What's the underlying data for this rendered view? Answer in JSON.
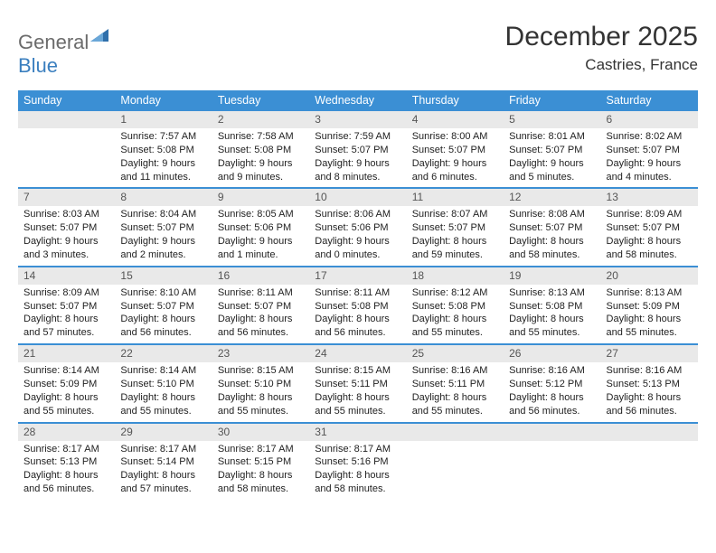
{
  "logo": {
    "textGray": "General",
    "textBlue": "Blue"
  },
  "title": "December 2025",
  "location": "Castries, France",
  "colors": {
    "headerBg": "#3b8fd4",
    "headerText": "#ffffff",
    "dayNumBg": "#e9e9e9",
    "rowDivider": "#3b8fd4",
    "logoGray": "#6b6b6b",
    "logoBlue": "#3b7fbf"
  },
  "weekdays": [
    "Sunday",
    "Monday",
    "Tuesday",
    "Wednesday",
    "Thursday",
    "Friday",
    "Saturday"
  ],
  "weeks": [
    [
      {
        "n": "",
        "sr": "",
        "ss": "",
        "dl": ""
      },
      {
        "n": "1",
        "sr": "Sunrise: 7:57 AM",
        "ss": "Sunset: 5:08 PM",
        "dl": "Daylight: 9 hours and 11 minutes."
      },
      {
        "n": "2",
        "sr": "Sunrise: 7:58 AM",
        "ss": "Sunset: 5:08 PM",
        "dl": "Daylight: 9 hours and 9 minutes."
      },
      {
        "n": "3",
        "sr": "Sunrise: 7:59 AM",
        "ss": "Sunset: 5:07 PM",
        "dl": "Daylight: 9 hours and 8 minutes."
      },
      {
        "n": "4",
        "sr": "Sunrise: 8:00 AM",
        "ss": "Sunset: 5:07 PM",
        "dl": "Daylight: 9 hours and 6 minutes."
      },
      {
        "n": "5",
        "sr": "Sunrise: 8:01 AM",
        "ss": "Sunset: 5:07 PM",
        "dl": "Daylight: 9 hours and 5 minutes."
      },
      {
        "n": "6",
        "sr": "Sunrise: 8:02 AM",
        "ss": "Sunset: 5:07 PM",
        "dl": "Daylight: 9 hours and 4 minutes."
      }
    ],
    [
      {
        "n": "7",
        "sr": "Sunrise: 8:03 AM",
        "ss": "Sunset: 5:07 PM",
        "dl": "Daylight: 9 hours and 3 minutes."
      },
      {
        "n": "8",
        "sr": "Sunrise: 8:04 AM",
        "ss": "Sunset: 5:07 PM",
        "dl": "Daylight: 9 hours and 2 minutes."
      },
      {
        "n": "9",
        "sr": "Sunrise: 8:05 AM",
        "ss": "Sunset: 5:06 PM",
        "dl": "Daylight: 9 hours and 1 minute."
      },
      {
        "n": "10",
        "sr": "Sunrise: 8:06 AM",
        "ss": "Sunset: 5:06 PM",
        "dl": "Daylight: 9 hours and 0 minutes."
      },
      {
        "n": "11",
        "sr": "Sunrise: 8:07 AM",
        "ss": "Sunset: 5:07 PM",
        "dl": "Daylight: 8 hours and 59 minutes."
      },
      {
        "n": "12",
        "sr": "Sunrise: 8:08 AM",
        "ss": "Sunset: 5:07 PM",
        "dl": "Daylight: 8 hours and 58 minutes."
      },
      {
        "n": "13",
        "sr": "Sunrise: 8:09 AM",
        "ss": "Sunset: 5:07 PM",
        "dl": "Daylight: 8 hours and 58 minutes."
      }
    ],
    [
      {
        "n": "14",
        "sr": "Sunrise: 8:09 AM",
        "ss": "Sunset: 5:07 PM",
        "dl": "Daylight: 8 hours and 57 minutes."
      },
      {
        "n": "15",
        "sr": "Sunrise: 8:10 AM",
        "ss": "Sunset: 5:07 PM",
        "dl": "Daylight: 8 hours and 56 minutes."
      },
      {
        "n": "16",
        "sr": "Sunrise: 8:11 AM",
        "ss": "Sunset: 5:07 PM",
        "dl": "Daylight: 8 hours and 56 minutes."
      },
      {
        "n": "17",
        "sr": "Sunrise: 8:11 AM",
        "ss": "Sunset: 5:08 PM",
        "dl": "Daylight: 8 hours and 56 minutes."
      },
      {
        "n": "18",
        "sr": "Sunrise: 8:12 AM",
        "ss": "Sunset: 5:08 PM",
        "dl": "Daylight: 8 hours and 55 minutes."
      },
      {
        "n": "19",
        "sr": "Sunrise: 8:13 AM",
        "ss": "Sunset: 5:08 PM",
        "dl": "Daylight: 8 hours and 55 minutes."
      },
      {
        "n": "20",
        "sr": "Sunrise: 8:13 AM",
        "ss": "Sunset: 5:09 PM",
        "dl": "Daylight: 8 hours and 55 minutes."
      }
    ],
    [
      {
        "n": "21",
        "sr": "Sunrise: 8:14 AM",
        "ss": "Sunset: 5:09 PM",
        "dl": "Daylight: 8 hours and 55 minutes."
      },
      {
        "n": "22",
        "sr": "Sunrise: 8:14 AM",
        "ss": "Sunset: 5:10 PM",
        "dl": "Daylight: 8 hours and 55 minutes."
      },
      {
        "n": "23",
        "sr": "Sunrise: 8:15 AM",
        "ss": "Sunset: 5:10 PM",
        "dl": "Daylight: 8 hours and 55 minutes."
      },
      {
        "n": "24",
        "sr": "Sunrise: 8:15 AM",
        "ss": "Sunset: 5:11 PM",
        "dl": "Daylight: 8 hours and 55 minutes."
      },
      {
        "n": "25",
        "sr": "Sunrise: 8:16 AM",
        "ss": "Sunset: 5:11 PM",
        "dl": "Daylight: 8 hours and 55 minutes."
      },
      {
        "n": "26",
        "sr": "Sunrise: 8:16 AM",
        "ss": "Sunset: 5:12 PM",
        "dl": "Daylight: 8 hours and 56 minutes."
      },
      {
        "n": "27",
        "sr": "Sunrise: 8:16 AM",
        "ss": "Sunset: 5:13 PM",
        "dl": "Daylight: 8 hours and 56 minutes."
      }
    ],
    [
      {
        "n": "28",
        "sr": "Sunrise: 8:17 AM",
        "ss": "Sunset: 5:13 PM",
        "dl": "Daylight: 8 hours and 56 minutes."
      },
      {
        "n": "29",
        "sr": "Sunrise: 8:17 AM",
        "ss": "Sunset: 5:14 PM",
        "dl": "Daylight: 8 hours and 57 minutes."
      },
      {
        "n": "30",
        "sr": "Sunrise: 8:17 AM",
        "ss": "Sunset: 5:15 PM",
        "dl": "Daylight: 8 hours and 58 minutes."
      },
      {
        "n": "31",
        "sr": "Sunrise: 8:17 AM",
        "ss": "Sunset: 5:16 PM",
        "dl": "Daylight: 8 hours and 58 minutes."
      },
      {
        "n": "",
        "sr": "",
        "ss": "",
        "dl": ""
      },
      {
        "n": "",
        "sr": "",
        "ss": "",
        "dl": ""
      },
      {
        "n": "",
        "sr": "",
        "ss": "",
        "dl": ""
      }
    ]
  ]
}
